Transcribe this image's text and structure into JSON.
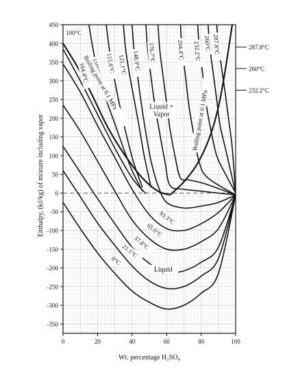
{
  "chart_data": {
    "type": "line",
    "title": "",
    "xlabel": "Wt. percentage H₂SO₄",
    "ylabel": "Enthalpy, (kJ/kg) of mixture including vapor",
    "xlim": [
      0,
      100
    ],
    "ylim": [
      -375,
      450
    ],
    "x_ticks": [
      0,
      20,
      40,
      60,
      80,
      100
    ],
    "y_ticks": [
      450,
      400,
      350,
      300,
      250,
      200,
      150,
      100,
      50,
      0,
      -50,
      -100,
      -150,
      -200,
      -250,
      -300,
      -350
    ],
    "grid": true,
    "zero_line": "dashed",
    "region_labels": [
      {
        "text": "Liquid +",
        "x": 57,
        "y": 225
      },
      {
        "text": "Vapor",
        "x": 57,
        "y": 205
      },
      {
        "text": "Liquid",
        "x": 58,
        "y": -210
      }
    ],
    "right_labels": [
      {
        "text": "287.8°C",
        "y": 390
      },
      {
        "text": "260°C",
        "y": 333
      },
      {
        "text": "232.2°C",
        "y": 275
      }
    ],
    "boiling_curve_labels": {
      "left": "Boiling point at 0.1 MPa",
      "right": "Boiling point at 0.1 MPa"
    },
    "isotherms": [
      {
        "label": "0°C",
        "points": [
          [
            0,
            -25
          ],
          [
            10,
            -95
          ],
          [
            20,
            -160
          ],
          [
            30,
            -215
          ],
          [
            40,
            -262
          ],
          [
            50,
            -292
          ],
          [
            60,
            -310
          ],
          [
            70,
            -300
          ],
          [
            80,
            -268
          ],
          [
            90,
            -215
          ],
          [
            100,
            -5
          ]
        ]
      },
      {
        "label": "21.1°C",
        "points": [
          [
            0,
            60
          ],
          [
            10,
            -10
          ],
          [
            20,
            -80
          ],
          [
            30,
            -140
          ],
          [
            40,
            -195
          ],
          [
            50,
            -235
          ],
          [
            60,
            -255
          ],
          [
            70,
            -250
          ],
          [
            80,
            -222
          ],
          [
            90,
            -175
          ],
          [
            100,
            -5
          ]
        ]
      },
      {
        "label": "37.8°C",
        "points": [
          [
            0,
            125
          ],
          [
            10,
            55
          ],
          [
            20,
            -15
          ],
          [
            30,
            -82
          ],
          [
            40,
            -145
          ],
          [
            50,
            -188
          ],
          [
            60,
            -212
          ],
          [
            70,
            -208
          ],
          [
            80,
            -185
          ],
          [
            90,
            -145
          ],
          [
            100,
            -5
          ]
        ]
      },
      {
        "label": "65.6°C",
        "points": [
          [
            0,
            235
          ],
          [
            10,
            165
          ],
          [
            20,
            85
          ],
          [
            30,
            5
          ],
          [
            40,
            -72
          ],
          [
            50,
            -122
          ],
          [
            60,
            -150
          ],
          [
            70,
            -150
          ],
          [
            80,
            -130
          ],
          [
            90,
            -95
          ],
          [
            100,
            -5
          ]
        ]
      },
      {
        "label": "93.3°C",
        "points": [
          [
            0,
            345
          ],
          [
            10,
            270
          ],
          [
            20,
            180
          ],
          [
            30,
            95
          ],
          [
            40,
            10
          ],
          [
            50,
            -58
          ],
          [
            60,
            -95
          ],
          [
            70,
            -100
          ],
          [
            80,
            -82
          ],
          [
            90,
            -52
          ],
          [
            100,
            -5
          ]
        ]
      },
      {
        "label": "100°C",
        "points": [
          [
            0,
            385
          ],
          [
            10,
            300
          ],
          [
            20,
            210
          ],
          [
            30,
            120
          ],
          [
            40,
            40
          ],
          [
            48,
            -2
          ]
        ]
      },
      {
        "label": "104.4°C",
        "points": [
          [
            15,
            450
          ],
          [
            17,
            395
          ],
          [
            20,
            325
          ],
          [
            25,
            250
          ],
          [
            30,
            185
          ],
          [
            35,
            120
          ],
          [
            40,
            60
          ],
          [
            46,
            5
          ]
        ]
      },
      {
        "label": "110°C",
        "points": [
          [
            25,
            450
          ],
          [
            27,
            380
          ],
          [
            30,
            300
          ],
          [
            33,
            230
          ],
          [
            37,
            150
          ],
          [
            41,
            80
          ],
          [
            46,
            15
          ]
        ]
      },
      {
        "label": "115.6°C",
        "points": [
          [
            35,
            450
          ],
          [
            36,
            395
          ],
          [
            38,
            330
          ],
          [
            41,
            255
          ],
          [
            44,
            180
          ],
          [
            47,
            100
          ],
          [
            51,
            15
          ]
        ]
      },
      {
        "label": "121.1°C",
        "points": [
          [
            40,
            450
          ],
          [
            41,
            390
          ],
          [
            43,
            320
          ],
          [
            45,
            250
          ],
          [
            48,
            160
          ],
          [
            51,
            85
          ],
          [
            55,
            20
          ],
          [
            60,
            -25
          ],
          [
            70,
            -40
          ],
          [
            80,
            -35
          ],
          [
            90,
            -25
          ],
          [
            100,
            -5
          ]
        ]
      },
      {
        "label": "148.9°C",
        "points": [
          [
            48,
            450
          ],
          [
            49,
            385
          ],
          [
            51,
            310
          ],
          [
            53,
            240
          ],
          [
            56,
            160
          ],
          [
            59,
            85
          ],
          [
            62,
            20
          ],
          [
            70,
            10
          ],
          [
            80,
            5
          ],
          [
            90,
            0
          ],
          [
            100,
            -5
          ]
        ]
      },
      {
        "label": "176.7°C",
        "points": [
          [
            55,
            450
          ],
          [
            56,
            385
          ],
          [
            58,
            310
          ],
          [
            60,
            240
          ],
          [
            62,
            170
          ],
          [
            65,
            95
          ],
          [
            68,
            40
          ],
          [
            73,
            35
          ],
          [
            82,
            25
          ],
          [
            100,
            -5
          ]
        ]
      },
      {
        "label": "204.4°C",
        "points": [
          [
            68,
            450
          ],
          [
            69,
            385
          ],
          [
            71,
            310
          ],
          [
            73,
            230
          ],
          [
            76,
            150
          ],
          [
            79,
            80
          ],
          [
            84,
            40
          ],
          [
            100,
            -5
          ]
        ]
      },
      {
        "label": "232.2°C",
        "points": [
          [
            78,
            450
          ],
          [
            79,
            385
          ],
          [
            81,
            315
          ],
          [
            83,
            235
          ],
          [
            86,
            160
          ],
          [
            89,
            100
          ],
          [
            93,
            60
          ],
          [
            100,
            0
          ]
        ]
      },
      {
        "label": "260°C",
        "points": [
          [
            84,
            450
          ],
          [
            85,
            390
          ],
          [
            87,
            320
          ],
          [
            89,
            250
          ],
          [
            91,
            180
          ],
          [
            94,
            120
          ],
          [
            100,
            0
          ]
        ]
      },
      {
        "label": "287.8°C",
        "points": [
          [
            89,
            450
          ],
          [
            90,
            395
          ],
          [
            92,
            330
          ],
          [
            94,
            265
          ],
          [
            96,
            195
          ],
          [
            98,
            120
          ],
          [
            100,
            0
          ]
        ]
      }
    ],
    "boiling_curve_left": {
      "points": [
        [
          0,
          400
        ],
        [
          8,
          340
        ],
        [
          16,
          270
        ],
        [
          26,
          175
        ],
        [
          36,
          100
        ],
        [
          46,
          40
        ],
        [
          55,
          5
        ],
        [
          62,
          -5
        ]
      ]
    },
    "boiling_curve_right": {
      "points": [
        [
          62,
          -5
        ],
        [
          70,
          30
        ],
        [
          78,
          80
        ],
        [
          85,
          150
        ],
        [
          90,
          230
        ],
        [
          94,
          330
        ],
        [
          98,
          450
        ]
      ]
    }
  }
}
